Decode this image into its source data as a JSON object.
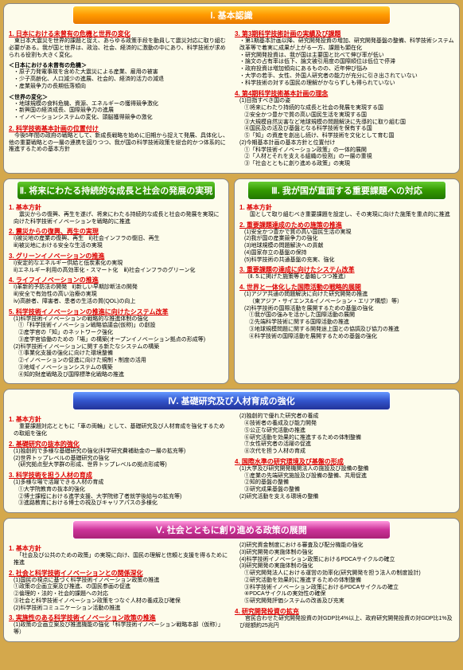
{
  "s1": {
    "title": "Ⅰ. 基本認識",
    "left": {
      "h1": "1. 日本における未曾有の危機と世界の変化",
      "p1": "　東日本大震災を世界的課題と捉え、あらゆる政策手段を動員して震災対応に取り組む必要がある。我が国と世界は、政治、社会、経済的に激動の中にあり、科学技術が求められる役割も大きく変化。",
      "h2": "＜日本における未曾有の危機＞",
      "b1": [
        "・原子力発電事故を含めた大震災による産業、雇用の被害",
        "・少子高齢化、人口減少の進展、社会的、経済的活力の減退",
        "・産業競争力の長期低落傾向"
      ],
      "h3": "＜世界の変化＞",
      "b2": [
        "・地球規模の食料危機、資源、エネルギーの獲得競争激化",
        "・新興国の経済成長、国際競争力の進展",
        "・イノベーションシステムの変化、頭脳獲得競争の激化"
      ],
      "h4": "2. 科学技術基本計画の位置付け",
      "p2": "　今後5年間の政府の戦略として、新成長戦略を始めに旧期から捉えて発展、具体化し、他の重要戦略との一層の連携を図りつつ、我が国の科学技術政策を総合的かつ体系的に推進するための基本方針"
    },
    "right": {
      "h1": "3. 第3期科学技術計画の実績及び課題",
      "b1": [
        "・第1期基本計画以降、研究開発投資の増加、研究開発基盤の整備、科学技術システム改革等で着実に成果が上がる一方、課題も顕在化",
        "・研究開発投資は、我が国は主要国と比べて伸び率が低い",
        "・論文の占有率は低下、論文被引用度の国際順位は低位で停滞",
        "・政府投資は増加傾向にあるものの、近年伸び悩み",
        "・大学の若手、女性、外国人研究者の能力が充分に引き出されていない",
        "・科学技術の対する国民の理解がかならずしも得られていない"
      ],
      "h2": "4. 第4期科学技術基本計画の理念",
      "p1": "(1)目指すべき国の姿",
      "b2": [
        "①将来にわたり持続的な成長と社会の発展を実現する国",
        "②安全かつ豊かで質の高い国民生活を実現する国",
        "③大規模自然災害など地球規模の問題解決に先導的に取り組む国",
        "④国民及の活及び基盤となる科学技術を保有する国",
        "⑤「知」の資産を創出し続け、科学技術を文化として育む国"
      ],
      "p2": "(2)今期基本計画の基本方針と位置付け",
      "b3": [
        "①「科学技術イノベーション政策」の一体的展開",
        "②「人材とそれを支える組織の役割」の一層の重視",
        "③「社会とともに創り進める政策」の実現"
      ]
    }
  },
  "s2": {
    "title": "Ⅱ. 将来にわたる持続的な成長と社会の発展の実現",
    "h1": "1. 基本方針",
    "p1": "　震災からの復興、再生を遂げ、将来にわたる持続的な成長と社会の発展を実現に向けた科学技術イノベーションを戦略的に推進",
    "h2": "2. 震災からの復興、再生の実現",
    "row1a": "ⅰ)被災地の産業の復興、再生",
    "row1b": "ⅱ)社会インフラの復旧、再生",
    "row1c": "ⅲ)被災地における安全な生活の実現",
    "h3": "3. グリーンイノベーションの推進",
    "row2a": "ⅰ)安定的なエネルギー供給と低炭素化の実現",
    "row2b": "ⅱ)エネルギー利用の高効率化・スマート化　ⅲ)社会インフラのグリーン化",
    "h4": "4. ライフイノベーションの推進",
    "row3a": "ⅰ)革新的予防法の開発",
    "row3b": "ⅱ)新しい早期診断法の開発",
    "row3c": "ⅲ)安全で有効性の高い治療の実現",
    "row3d": "ⅳ)高齢者、障害者、患者の生活の質(QOL)の向上",
    "h5": "5. 科学技術イノベーションの推進に向けたシステム改革",
    "p5a": "(1)科学技術イノベーションの戦略的な推進体制の強化",
    "b5a": [
      "①「科学技術イノベーション戦略協議会(仮称)」の創設",
      "②産学官の「知」のネットワーク強化",
      "③産学官協働のための「場」の構築(オープンイノベーション拠点の形成等)"
    ],
    "p5b": "(2)科学技術イノベーションに関する新たなシステムの構築",
    "b5b": [
      "①事業化支援の強化に向けた環境整備",
      "②イノベーションの促進に向けた規制・制度の活用",
      "③地域イノベーションシステムの構築",
      "④知的財産戦略及び国際標準化戦略の推進"
    ]
  },
  "s3": {
    "title": "Ⅲ. 我が国が直面する重要課題への対応",
    "h1": "1. 基本方針",
    "p1": "　国として取り組むべき重要課題を設定し、その実現に向けた施策を重点的に推進",
    "h2": "2. 重要課題達成のための施策の推進",
    "b2": [
      "(1)安全かつ豊かで質の高い国民生活の実現",
      "(2)我が国の産業競争力の強化",
      "(3)地球規模の問題解決への貢献",
      "(4)国家存立の基盤の保持",
      "(5)科学技術の共通基盤の充実、強化"
    ],
    "h3": "3. 重要課題の達成に向けたシステム改革",
    "p3": "（Ⅱ. 5.に掲げた施策等と基軸しつつ推進）",
    "h4": "4. 世界と一体化した国際活動の戦略的展開",
    "p4a": "(1)アジア共通の問題解決に向けた研究開発の推進",
    "p4a2": "（東アジア・サイエンス&イノベーション・エリア構想）等）",
    "p4b": "(2)科学技術の国際活動を展開するための基盤の強化",
    "b4b": [
      "①我が国の強みを活かした国際活動の展開",
      "②先端科学技術に関する国際活動の推進",
      "③地球規模問題に関する開発途上国との協調及び協力の推進",
      "④科学技術の国際活動を展開するための基盤の強化"
    ]
  },
  "s4": {
    "title": "Ⅳ. 基礎研究及び人材育成の強化",
    "left": {
      "h1": "1. 基本方針",
      "p1": "　重要課題対応とともに「車の両輪」として、基礎研究及び人材育成を強化するための取組を強化",
      "h2": "2. 基礎研究の抜本的強化",
      "b2": [
        "(1)独創的で多様な基礎研究の強化(科学研究費補助金の一層の拡充等)",
        "(2)世界トップレベルの基礎研究の強化"
      ],
      "p2a": "(研究拠点型大学群の形成、世界トップレベルの拠点形成等)",
      "h3": "3. 科学技術を担う人材の育成",
      "p3a": "(1)多様な場で活躍できる人材の育成",
      "b3a": [
        "①大学院教育の抜本的強化",
        "②博士課程における進学支援、大学院修了者就学後給与の拡充等)",
        "③進路教育における博士の視及びキャリアパスの多様化"
      ]
    },
    "right": {
      "b1": [
        "④技術者の養成及び能力開発",
        "⑤公正な研究活動の推進",
        "⑥研究活動を効果的に推進するための体制整備",
        "⑦女性研究者の活躍の促進",
        "⑧次代を担う人材の育成"
      ],
      "p2": "(2)独創的で優れた研究者の養成",
      "h4": "4. 国際水準の研究環境及び基盤の形成",
      "p4a": "(1)大学及び研究開発機関法人の施設及び設備の整備",
      "b4": [
        "①産業の先端研究施設及び設備の整備、共用促進",
        "②知的基盤の整備",
        "③研究成果基盤の整備"
      ],
      "p4b": "(2)研究活動を支える環境の整備"
    }
  },
  "s5": {
    "title": "Ⅴ. 社会とともに創り進める政策の展開",
    "left": {
      "h1": "1. 基本方針",
      "p1": "　「社会及び公共のための政策」の実現に向け、国民の理解と信頼と支援を得るために推進",
      "h2": "2. 社会と科学技術イノベーションとの関係深化",
      "b2": [
        "(1)国民の視点に基づく科学技術イノベーション政策の推進",
        "①政策の企画立案及び推進、の国民参画の促進",
        "②倫理的・法的・社会的課題への対応",
        "③社会と科学技術イノベーション政策をつなぐ人材の養成及び確保",
        "(2)科学技術コミュニケーション活動の推進"
      ],
      "h3": "3. 実施性のある科学技術イノベーション政策の推進",
      "p3": "(1)政策の企画立案及び推進機能の強化「科学技術イノベーション戦略本部（仮称）」等）"
    },
    "right": {
      "b1": [
        "(2)研究資金制度における審査及び配分機能の強化",
        "(3)研究開発の実施体制の強化",
        "(4)科学技術イノベーション政策におけるPDCAサイクルの確立"
      ],
      "p2": "(3)研究開発の実施体制の強化",
      "b2": [
        "①研究開発法人における運営の効率化(研究開発を担う法人の制度設計)",
        "②研究活動を効果的に推進するための体制整備",
        "③科学技術イノベーション政策におけるPDCAサイクルの確立",
        "④PDCAサイクルの実効性の確保",
        "⑤研究開発評価システムの改善及び充実"
      ],
      "h4": "4. 研究開発投資の拡充",
      "p4": "　官民合わせた研究開発投資の対GDP比4%以上、政府研究開発投資の対GDP比1%及び総額約25兆円"
    }
  }
}
